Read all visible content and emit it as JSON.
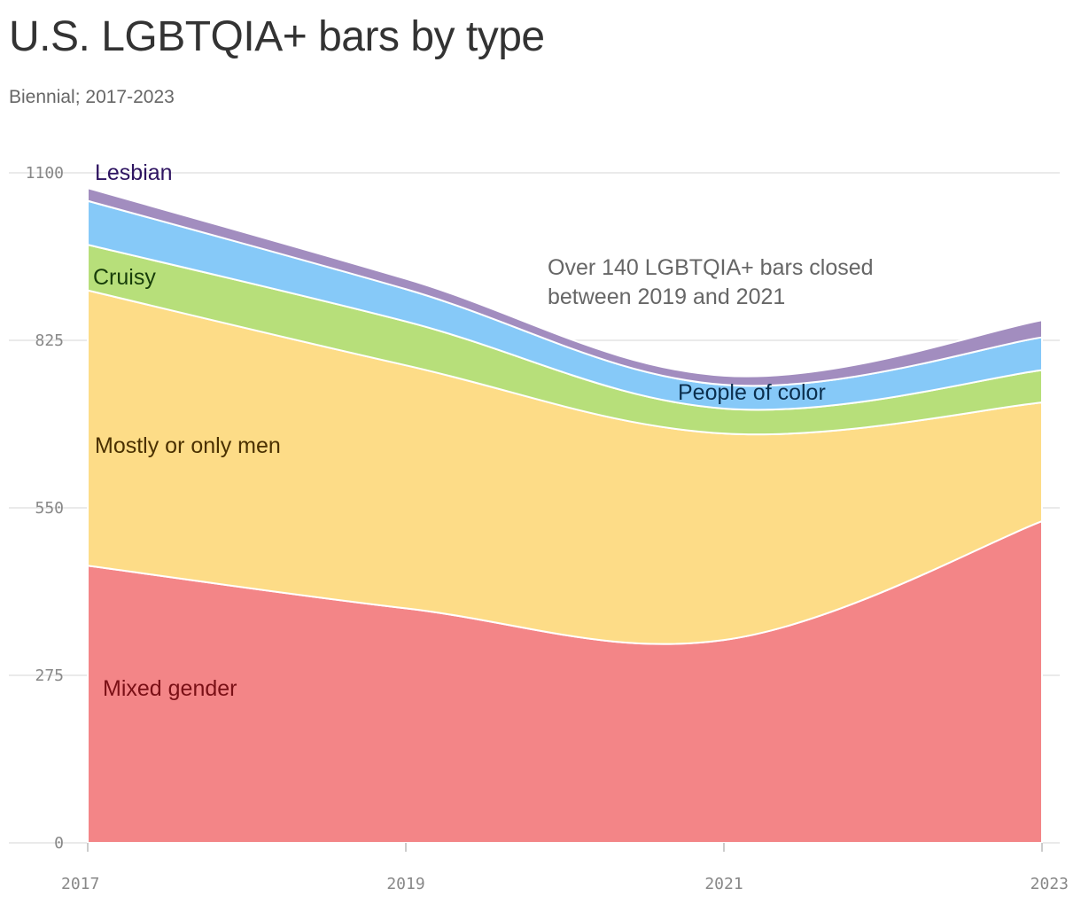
{
  "title": "U.S. LGBTQIA+ bars by type",
  "subtitle": "Biennial; 2017-2023",
  "annotation": [
    "Over 140 LGBTQIA+ bars closed",
    "between 2019 and 2021"
  ],
  "chart_data": {
    "type": "area",
    "stacked": true,
    "x": [
      "2017",
      "2019",
      "2021",
      "2023"
    ],
    "ylim": [
      0,
      1100
    ],
    "yticks": [
      0,
      275,
      550,
      825,
      1100
    ],
    "grid": true,
    "series": [
      {
        "name": "Mixed gender",
        "values": [
          455,
          385,
          333,
          528
        ],
        "color": "#f38587",
        "label_color": "#7a1016"
      },
      {
        "name": "Mostly or only men",
        "values": [
          452,
          399,
          339,
          195
        ],
        "color": "#fddc87",
        "label_color": "#4a3000"
      },
      {
        "name": "Cruisy",
        "values": [
          75,
          72,
          41,
          53
        ],
        "color": "#b7df7a",
        "label_color": "#173d0a"
      },
      {
        "name": "People of color",
        "values": [
          72,
          53,
          39,
          54
        ],
        "color": "#86c9f8",
        "label_color": "#0b2f4e"
      },
      {
        "name": "Lesbian",
        "values": [
          21,
          17,
          15,
          28
        ],
        "color": "#a28dbf",
        "label_color": "#2e1461"
      }
    ]
  }
}
